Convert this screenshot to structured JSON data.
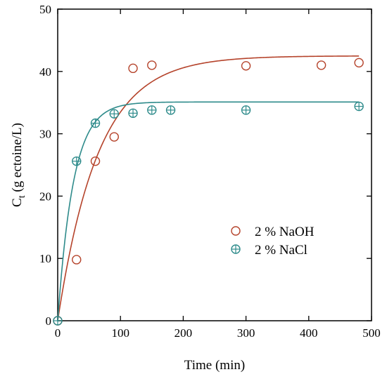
{
  "chart_data": {
    "type": "scatter",
    "title": "",
    "xlabel": "Time (min)",
    "ylabel_main": "C",
    "ylabel_sub": "t",
    "ylabel_rest": " (g ectoine/L)",
    "xlim": [
      0,
      500
    ],
    "ylim": [
      0,
      50
    ],
    "xticks": [
      0,
      100,
      200,
      300,
      400,
      500
    ],
    "yticks": [
      0,
      10,
      20,
      30,
      40,
      50
    ],
    "grid": false,
    "legend_position": "lower-right",
    "series": [
      {
        "name": "2 % NaOH",
        "marker": "open-circle",
        "color": "#b5432b",
        "x": [
          0,
          30,
          60,
          90,
          120,
          150,
          300,
          420,
          480
        ],
        "y": [
          0,
          9.8,
          25.6,
          29.5,
          40.5,
          41.0,
          40.9,
          41.0,
          41.4
        ],
        "fit": {
          "model": "exponential-rise",
          "plateau": 42.5,
          "rate": 0.0155
        }
      },
      {
        "name": "2 % NaCl",
        "marker": "crossed-circle",
        "color": "#2e8b8b",
        "x": [
          0,
          30,
          60,
          90,
          120,
          150,
          180,
          300,
          480
        ],
        "y": [
          0,
          25.6,
          31.7,
          33.2,
          33.3,
          33.8,
          33.8,
          33.8,
          34.4
        ],
        "fit": {
          "model": "exponential-rise",
          "plateau": 35.1,
          "rate": 0.04
        }
      }
    ]
  }
}
